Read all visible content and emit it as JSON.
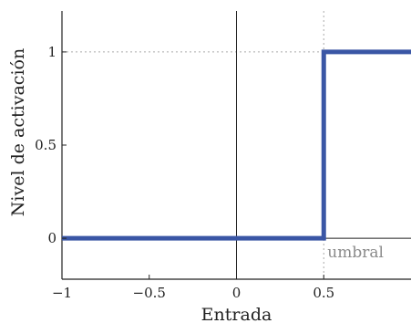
{
  "chart_data": {
    "type": "line",
    "title": "",
    "xlabel": "Entrada",
    "ylabel": "Nivel de activación",
    "xlim": [
      -1,
      1
    ],
    "ylim": [
      -0.22,
      1.22
    ],
    "x_ticks": [
      -1,
      -0.5,
      0,
      0.5
    ],
    "x_tick_labels": [
      "−1",
      "−0.5",
      "0",
      "0.5"
    ],
    "y_ticks": [
      0,
      0.5,
      1
    ],
    "y_tick_labels": [
      "0",
      "0.5",
      "1"
    ],
    "grid": false,
    "series": [
      {
        "color": "#3a56a5",
        "x": [
          -1,
          0.5,
          0.5,
          1
        ],
        "y": [
          0,
          0,
          1,
          1
        ]
      }
    ],
    "threshold": {
      "x": 0.5,
      "label": "umbral"
    },
    "colors": {
      "axes": "#222222",
      "guide": "#aaaaaa",
      "annotation": "#8a8a8a"
    }
  }
}
